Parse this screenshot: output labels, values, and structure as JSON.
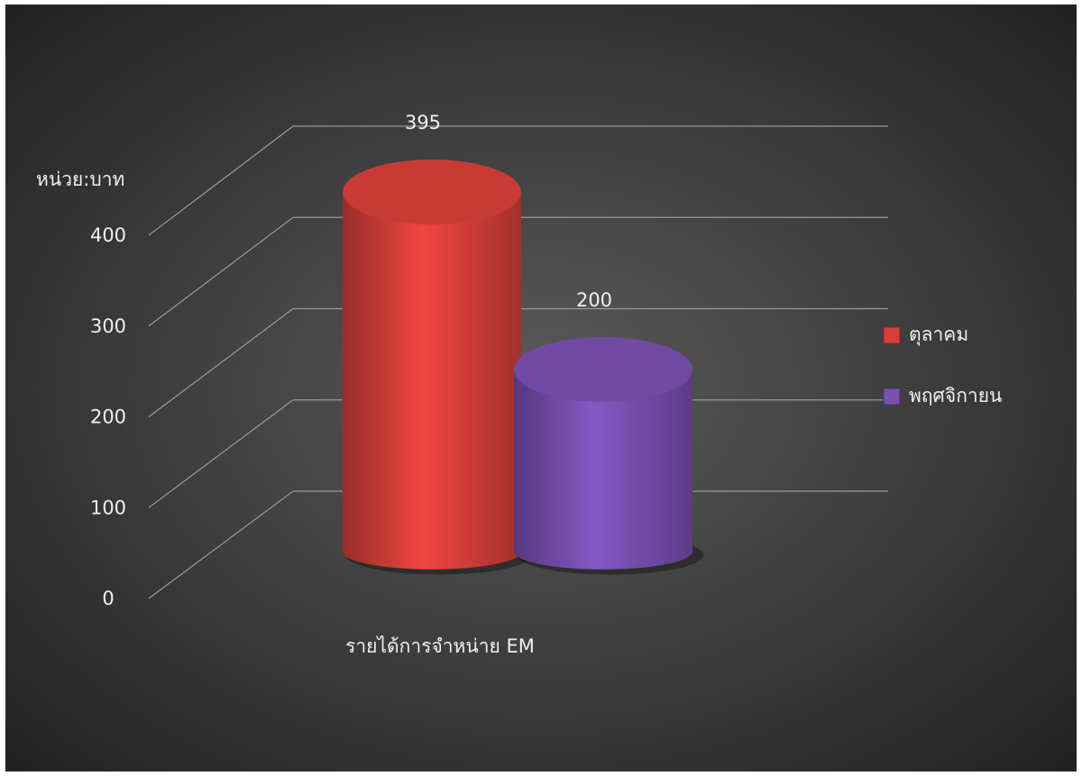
{
  "chart_data": {
    "type": "bar",
    "y_label": "หน่วย:บาท",
    "categories": [
      "รายได้การจำหน่าย EM"
    ],
    "series": [
      {
        "name": "ตุลาคม",
        "color": "#d9403a",
        "values": [
          395
        ]
      },
      {
        "name": "พฤศจิกายน",
        "color": "#7b50b2",
        "values": [
          200
        ]
      }
    ],
    "ylim": [
      0,
      400
    ],
    "yticks": [
      0,
      100,
      200,
      300,
      400
    ],
    "grid": true,
    "legend": "right"
  }
}
